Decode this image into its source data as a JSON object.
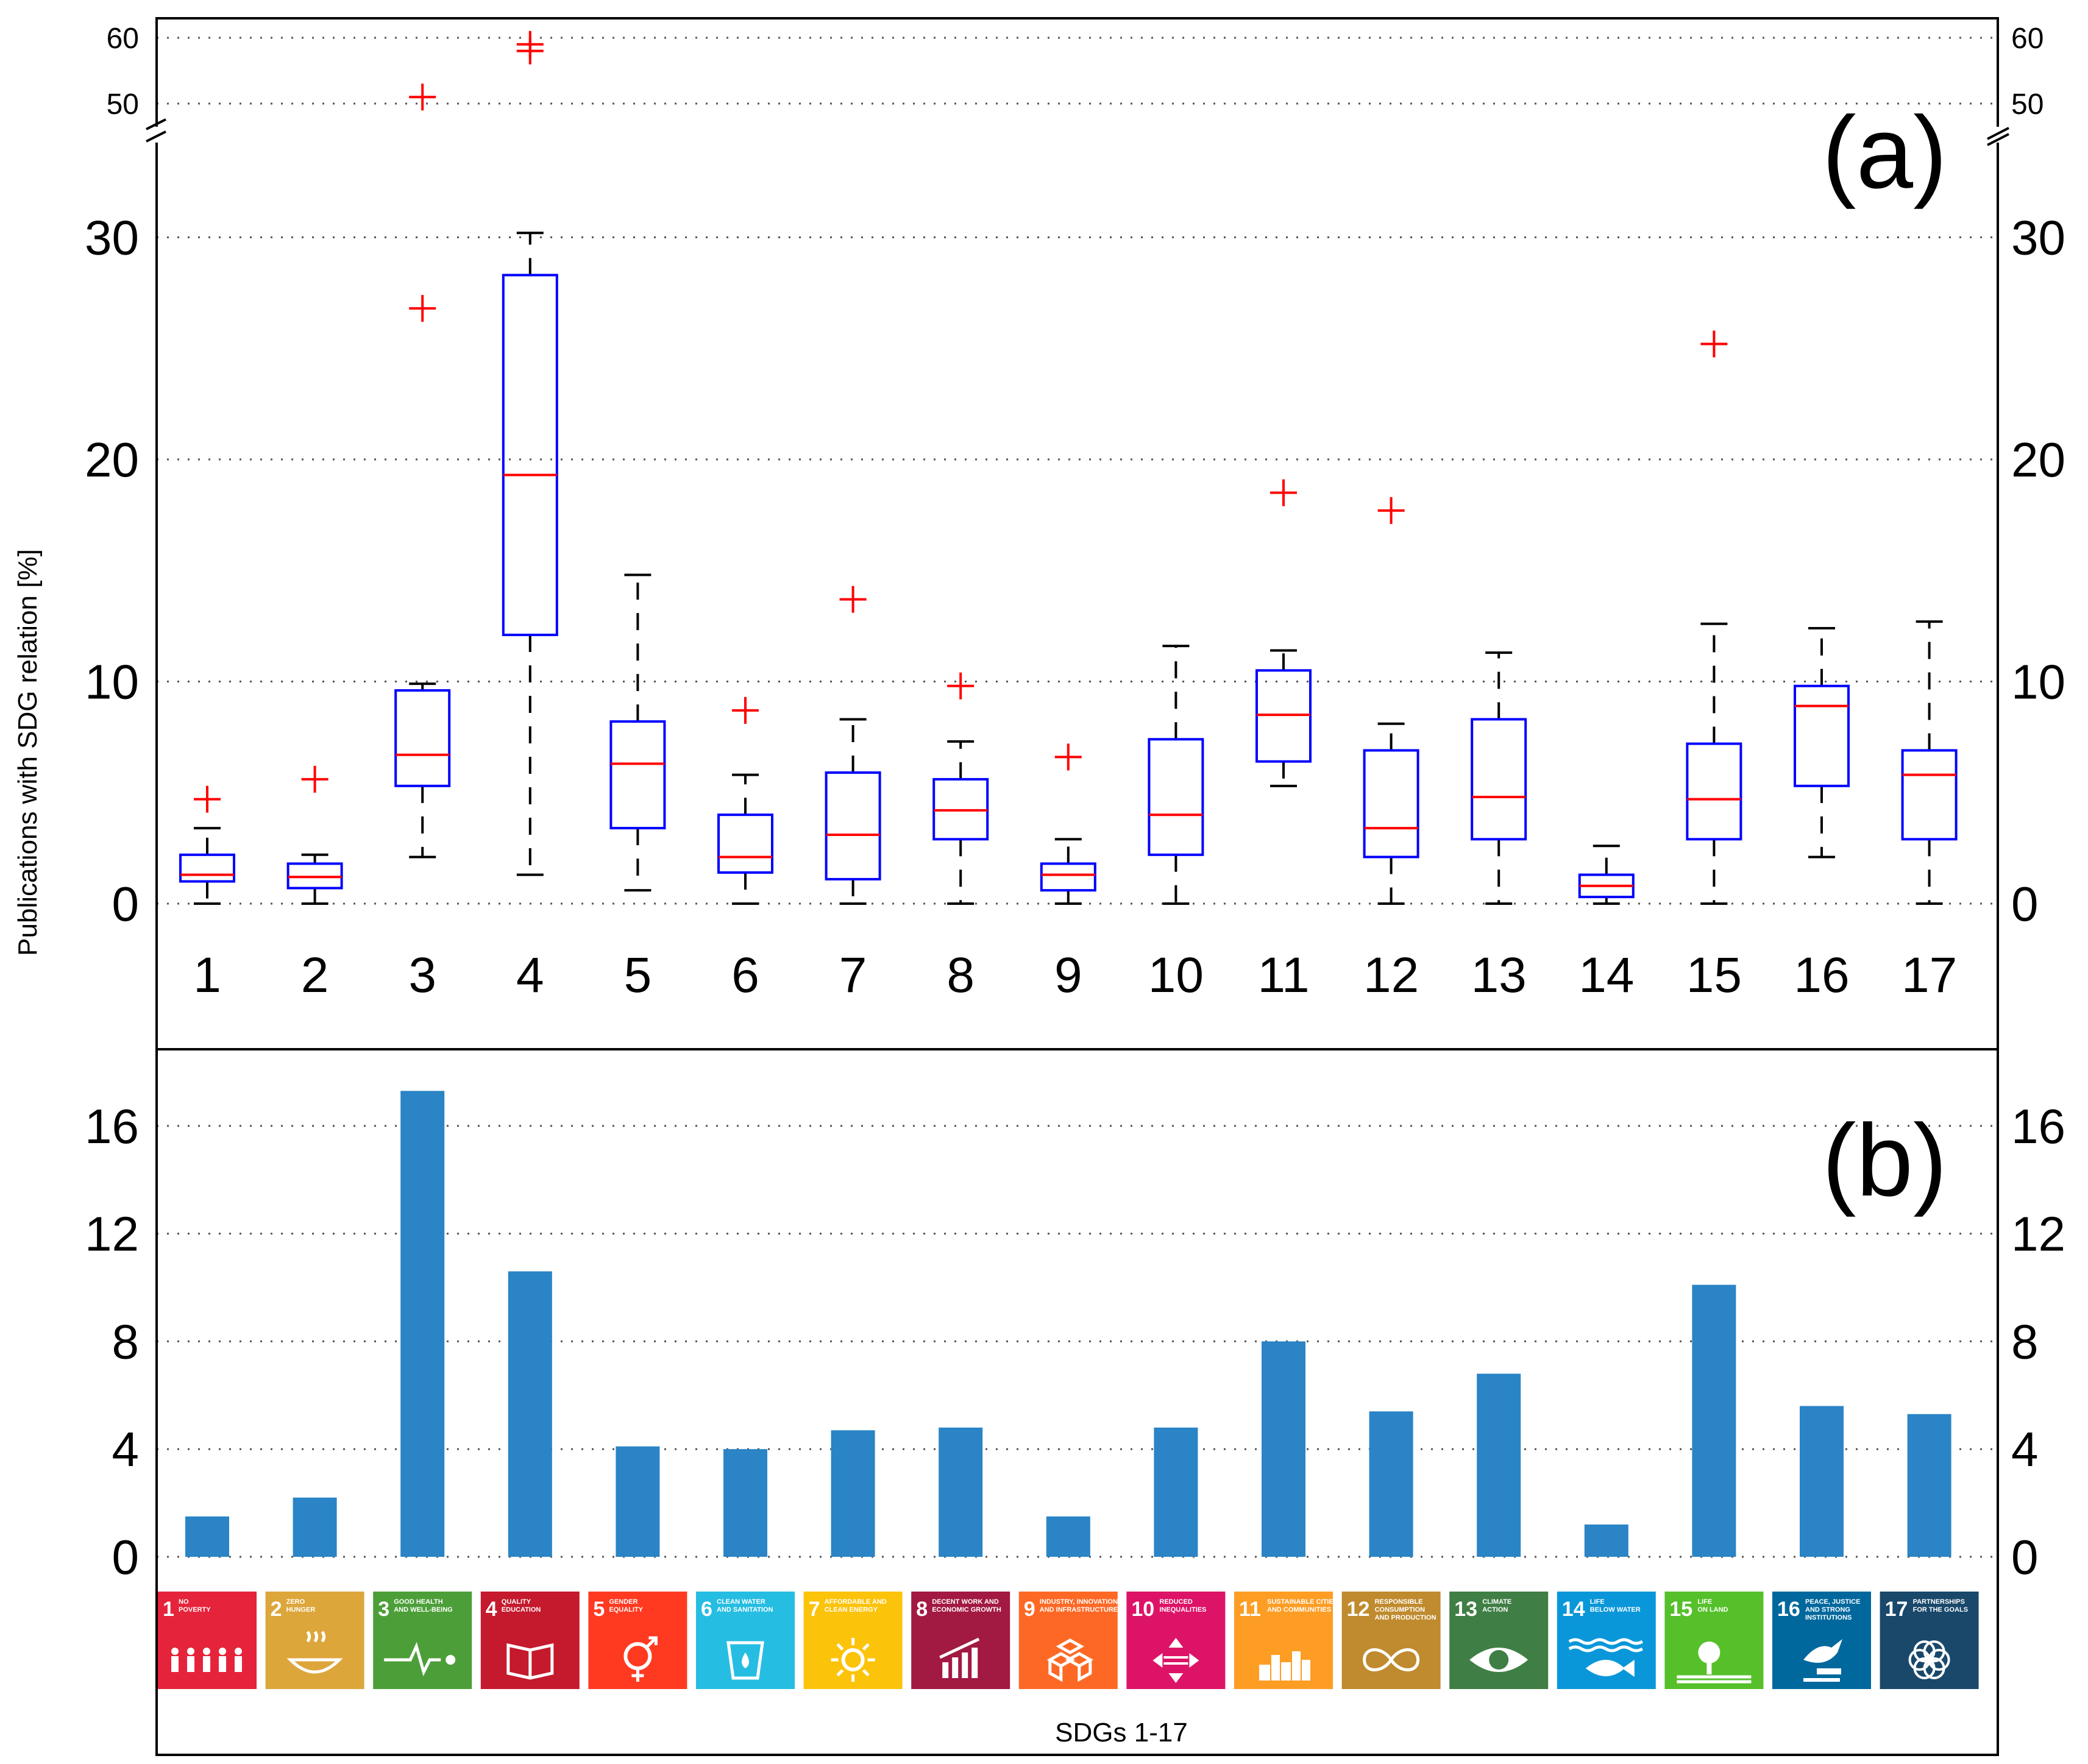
{
  "figure": {
    "ylabel": "Publications with SDG relation [%]",
    "xlabel": "SDGs 1-17"
  },
  "chart_data": [
    {
      "type": "box",
      "panel_label": "(a)",
      "categories": [
        "1",
        "2",
        "3",
        "4",
        "5",
        "6",
        "7",
        "8",
        "9",
        "10",
        "11",
        "12",
        "13",
        "14",
        "15",
        "16",
        "17"
      ],
      "ylim_lower": [
        0,
        33
      ],
      "ylim_upper": [
        45,
        63
      ],
      "yticks_lower": [
        0,
        10,
        20,
        30
      ],
      "yticks_upper": [
        50,
        60
      ],
      "grid": "horizontal-dotted",
      "boxes": [
        {
          "whisker_low": 0.0,
          "q1": 1.0,
          "median": 1.3,
          "q3": 2.2,
          "whisker_high": 3.4,
          "outliers": [
            4.7
          ]
        },
        {
          "whisker_low": 0.0,
          "q1": 0.7,
          "median": 1.2,
          "q3": 1.8,
          "whisker_high": 2.2,
          "outliers": [
            5.6
          ]
        },
        {
          "whisker_low": 2.1,
          "q1": 5.3,
          "median": 6.7,
          "q3": 9.6,
          "whisker_high": 9.9,
          "outliers": [
            26.8,
            51
          ]
        },
        {
          "whisker_low": 1.3,
          "q1": 12.1,
          "median": 19.3,
          "q3": 28.3,
          "whisker_high": 30.2,
          "outliers": [
            58,
            59
          ]
        },
        {
          "whisker_low": 0.6,
          "q1": 3.4,
          "median": 6.3,
          "q3": 8.2,
          "whisker_high": 14.8,
          "outliers": []
        },
        {
          "whisker_low": 0.0,
          "q1": 1.4,
          "median": 2.1,
          "q3": 4.0,
          "whisker_high": 5.8,
          "outliers": [
            8.7
          ]
        },
        {
          "whisker_low": 0.0,
          "q1": 1.1,
          "median": 3.1,
          "q3": 5.9,
          "whisker_high": 8.3,
          "outliers": [
            13.7
          ]
        },
        {
          "whisker_low": 0.0,
          "q1": 2.9,
          "median": 4.2,
          "q3": 5.6,
          "whisker_high": 7.3,
          "outliers": [
            9.8
          ]
        },
        {
          "whisker_low": 0.0,
          "q1": 0.6,
          "median": 1.3,
          "q3": 1.8,
          "whisker_high": 2.9,
          "outliers": [
            6.6
          ]
        },
        {
          "whisker_low": 0.0,
          "q1": 2.2,
          "median": 4.0,
          "q3": 7.4,
          "whisker_high": 11.6,
          "outliers": []
        },
        {
          "whisker_low": 5.3,
          "q1": 6.4,
          "median": 8.5,
          "q3": 10.5,
          "whisker_high": 11.4,
          "outliers": [
            18.5
          ]
        },
        {
          "whisker_low": 0.0,
          "q1": 2.1,
          "median": 3.4,
          "q3": 6.9,
          "whisker_high": 8.1,
          "outliers": [
            17.7
          ]
        },
        {
          "whisker_low": 0.0,
          "q1": 2.9,
          "median": 4.8,
          "q3": 8.3,
          "whisker_high": 11.3,
          "outliers": []
        },
        {
          "whisker_low": 0.0,
          "q1": 0.3,
          "median": 0.8,
          "q3": 1.3,
          "whisker_high": 2.6,
          "outliers": []
        },
        {
          "whisker_low": 0.0,
          "q1": 2.9,
          "median": 4.7,
          "q3": 7.2,
          "whisker_high": 12.6,
          "outliers": [
            25.2
          ]
        },
        {
          "whisker_low": 2.1,
          "q1": 5.3,
          "median": 8.9,
          "q3": 9.8,
          "whisker_high": 12.4,
          "outliers": []
        },
        {
          "whisker_low": 0.0,
          "q1": 2.9,
          "median": 5.8,
          "q3": 6.9,
          "whisker_high": 12.7,
          "outliers": []
        }
      ],
      "colors": {
        "box": "#0000ff",
        "median": "#ff0000",
        "outlier": "#ff0000",
        "whisker": "#000000"
      }
    },
    {
      "type": "bar",
      "panel_label": "(b)",
      "categories": [
        "1",
        "2",
        "3",
        "4",
        "5",
        "6",
        "7",
        "8",
        "9",
        "10",
        "11",
        "12",
        "13",
        "14",
        "15",
        "16",
        "17"
      ],
      "values": [
        1.5,
        2.2,
        17.3,
        10.6,
        4.1,
        4.0,
        4.7,
        4.8,
        1.5,
        4.8,
        8.0,
        5.4,
        6.8,
        1.2,
        10.1,
        5.6,
        5.3
      ],
      "ylim": [
        0,
        18.5
      ],
      "yticks": [
        0,
        4,
        8,
        12,
        16
      ],
      "grid": "horizontal-dotted",
      "color": "#2a84c6"
    }
  ],
  "sdg_icons": [
    {
      "num": "1",
      "text": [
        "NO",
        "POVERTY"
      ],
      "color": "#e5243b",
      "icon": "family-icon"
    },
    {
      "num": "2",
      "text": [
        "ZERO",
        "HUNGER"
      ],
      "color": "#dda63a",
      "icon": "bowl-icon"
    },
    {
      "num": "3",
      "text": [
        "GOOD HEALTH",
        "AND WELL-BEING"
      ],
      "color": "#4c9f38",
      "icon": "heartbeat-icon"
    },
    {
      "num": "4",
      "text": [
        "QUALITY",
        "EDUCATION"
      ],
      "color": "#c5192d",
      "icon": "book-icon"
    },
    {
      "num": "5",
      "text": [
        "GENDER",
        "EQUALITY"
      ],
      "color": "#ff3a21",
      "icon": "gender-icon"
    },
    {
      "num": "6",
      "text": [
        "CLEAN WATER",
        "AND SANITATION"
      ],
      "color": "#26bde2",
      "icon": "water-drop-icon"
    },
    {
      "num": "7",
      "text": [
        "AFFORDABLE AND",
        "CLEAN ENERGY"
      ],
      "color": "#fcc30b",
      "icon": "sun-icon"
    },
    {
      "num": "8",
      "text": [
        "DECENT WORK AND",
        "ECONOMIC GROWTH"
      ],
      "color": "#a21942",
      "icon": "growth-chart-icon"
    },
    {
      "num": "9",
      "text": [
        "INDUSTRY, INNOVATION",
        "AND INFRASTRUCTURE"
      ],
      "color": "#fd6925",
      "icon": "cubes-icon"
    },
    {
      "num": "10",
      "text": [
        "REDUCED",
        "INEQUALITIES"
      ],
      "color": "#dd1367",
      "icon": "arrows-icon"
    },
    {
      "num": "11",
      "text": [
        "SUSTAINABLE CITIES",
        "AND COMMUNITIES"
      ],
      "color": "#fd9d24",
      "icon": "city-icon"
    },
    {
      "num": "12",
      "text": [
        "RESPONSIBLE",
        "CONSUMPTION",
        "AND PRODUCTION"
      ],
      "color": "#bf8b2e",
      "icon": "infinity-icon"
    },
    {
      "num": "13",
      "text": [
        "CLIMATE",
        "ACTION"
      ],
      "color": "#3f7e44",
      "icon": "eye-globe-icon"
    },
    {
      "num": "14",
      "text": [
        "LIFE",
        "BELOW WATER"
      ],
      "color": "#0a97d9",
      "icon": "fish-icon"
    },
    {
      "num": "15",
      "text": [
        "LIFE",
        "ON LAND"
      ],
      "color": "#56c02b",
      "icon": "tree-icon"
    },
    {
      "num": "16",
      "text": [
        "PEACE, JUSTICE",
        "AND STRONG",
        "INSTITUTIONS"
      ],
      "color": "#00689d",
      "icon": "dove-gavel-icon"
    },
    {
      "num": "17",
      "text": [
        "PARTNERSHIPS",
        "FOR THE GOALS"
      ],
      "color": "#19486a",
      "icon": "flower-icon"
    }
  ]
}
